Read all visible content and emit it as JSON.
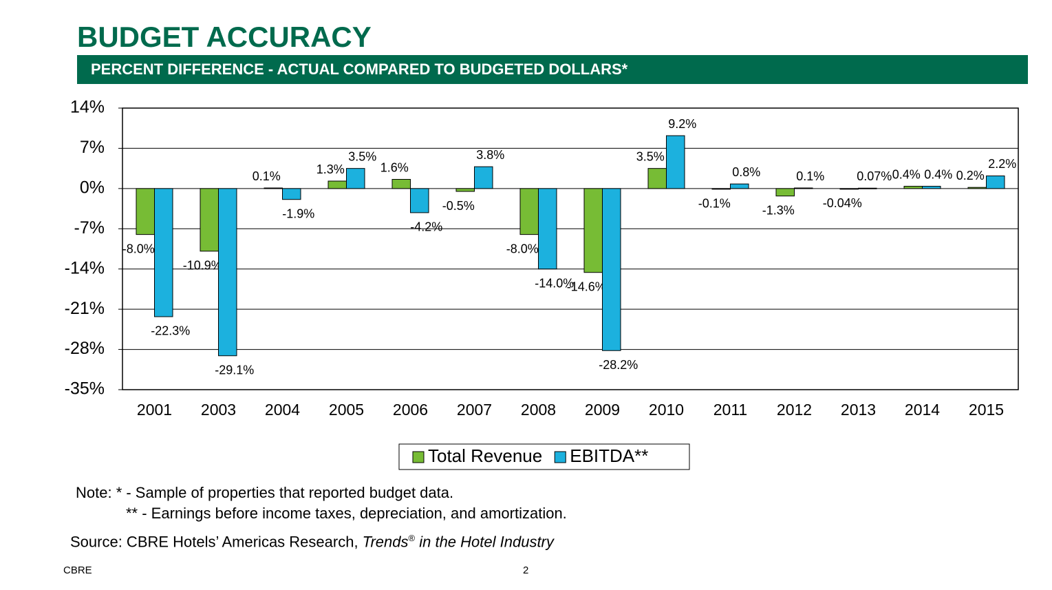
{
  "chart_data": {
    "type": "bar",
    "title": "BUDGET ACCURACY",
    "subtitle": "PERCENT DIFFERENCE -  ACTUAL COMPARED TO BUDGETED DOLLARS*",
    "categories": [
      "2001",
      "2003",
      "2004",
      "2005",
      "2006",
      "2007",
      "2008",
      "2009",
      "2010",
      "2011",
      "2012",
      "2013",
      "2014",
      "2015"
    ],
    "series": [
      {
        "name": "Total Revenue",
        "color": "#77bc35",
        "values": [
          -8.0,
          -10.9,
          0.1,
          1.3,
          1.6,
          -0.5,
          -8.0,
          -14.6,
          3.5,
          -0.1,
          -1.3,
          -0.04,
          0.4,
          0.2
        ],
        "value_labels": [
          "-8.0%",
          "-10.9%",
          "0.1%",
          "1.3%",
          "1.6%",
          "-0.5%",
          "-8.0%",
          "-14.6%",
          "3.5%",
          "-0.1%",
          "-1.3%",
          "-0.04%",
          "0.4%",
          "0.2%"
        ]
      },
      {
        "name": "EBITDA**",
        "color": "#1cb1de",
        "values": [
          -22.3,
          -29.1,
          -1.9,
          3.5,
          -4.2,
          3.8,
          -14.0,
          -28.2,
          9.2,
          0.8,
          0.1,
          0.07,
          0.4,
          2.2
        ],
        "value_labels": [
          "-22.3%",
          "-29.1%",
          "-1.9%",
          "3.5%",
          "-4.2%",
          "3.8%",
          "-14.0%",
          "-28.2%",
          "9.2%",
          "0.8%",
          "0.1%",
          "0.07%",
          "0.4%",
          "2.2%"
        ]
      }
    ],
    "ylim": [
      -35,
      14
    ],
    "yticks": [
      {
        "value": -35,
        "label": "-35%"
      },
      {
        "value": -28,
        "label": "-28%"
      },
      {
        "value": -21,
        "label": "-21%"
      },
      {
        "value": -14,
        "label": "-14%"
      },
      {
        "value": -7,
        "label": "-7%"
      },
      {
        "value": 0,
        "label": "0%"
      },
      {
        "value": 7,
        "label": "7%"
      },
      {
        "value": 14,
        "label": "14%"
      }
    ],
    "grid": true,
    "legend": "bottom",
    "notes": [
      "Note: * - Sample of properties that reported budget data.",
      "** - Earnings before income taxes, depreciation, and amortization."
    ],
    "source": {
      "text": "Source: CBRE Hotels’ Americas Research, ",
      "italic": "Trends",
      "mark": "®",
      "italic_end": " in the Hotel Industry"
    },
    "footer": {
      "left": "CBRE",
      "page": "2"
    }
  }
}
